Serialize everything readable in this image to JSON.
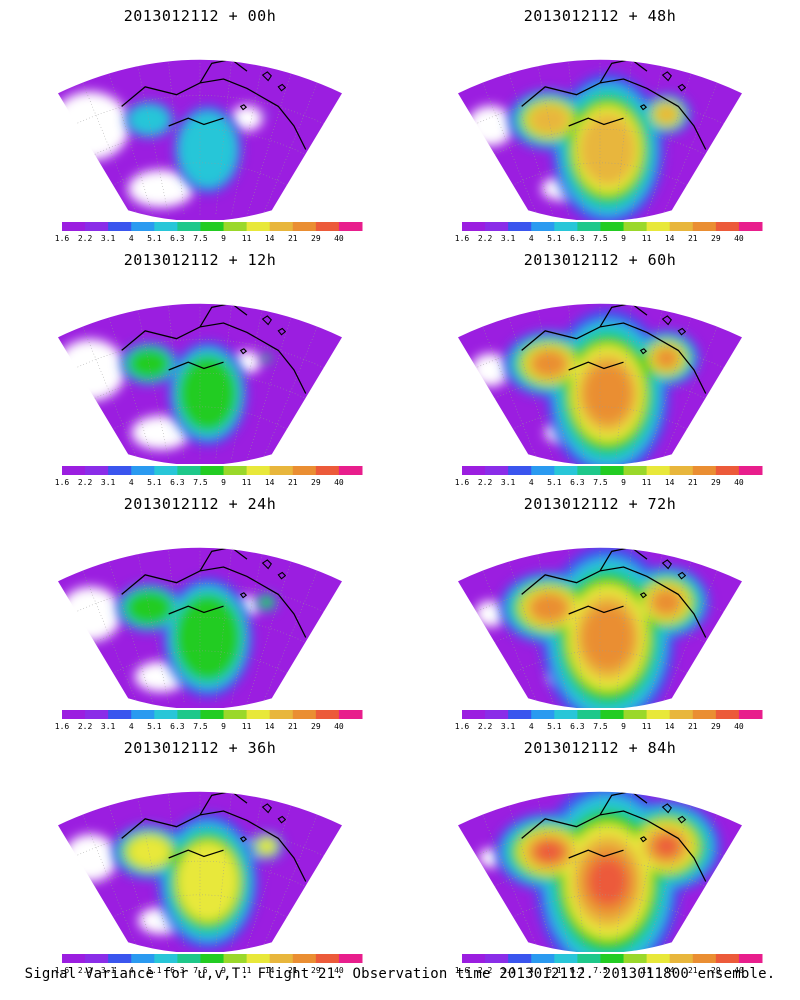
{
  "panels": [
    {
      "title": "2013012112 + 00h",
      "hour": 0
    },
    {
      "title": "2013012112 + 48h",
      "hour": 48
    },
    {
      "title": "2013012112 + 12h",
      "hour": 12
    },
    {
      "title": "2013012112 + 60h",
      "hour": 60
    },
    {
      "title": "2013012112 + 24h",
      "hour": 24
    },
    {
      "title": "2013012112 + 72h",
      "hour": 72
    },
    {
      "title": "2013012112 + 36h",
      "hour": 36
    },
    {
      "title": "2013012112 + 84h",
      "hour": 84
    }
  ],
  "colorbar": {
    "labels": [
      "1.6",
      "2.2",
      "3.1",
      "4",
      "5.1",
      "6.3",
      "7.5",
      "9",
      "11",
      "14",
      "21",
      "29",
      "40"
    ],
    "colors": [
      "#9b1ee0",
      "#8a2de8",
      "#3a55ee",
      "#2a9af0",
      "#28c6d8",
      "#1ec88a",
      "#22cc22",
      "#9ad82a",
      "#e8e83a",
      "#e8b63c",
      "#ea8e32",
      "#ec5a3a",
      "#e81e8c"
    ]
  },
  "caption": "Signal Variance for u,v,T. Flight 21. Observation time 2013012112. 2013011800 ensemble."
}
